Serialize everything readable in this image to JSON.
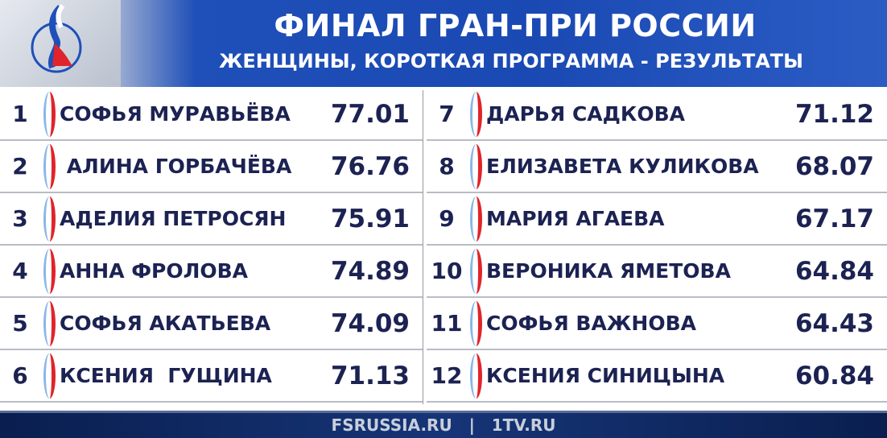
{
  "header": {
    "title": "ФИНАЛ ГРАН-ПРИ РОССИИ",
    "subtitle": "ЖЕНЩИНЫ, КОРОТКАЯ ПРОГРАММА - РЕЗУЛЬТАТЫ"
  },
  "results": [
    {
      "rank": "1",
      "name": "СОФЬЯ МУРАВЬЁВА",
      "score": "77.01"
    },
    {
      "rank": "2",
      "name": " АЛИНА ГОРБАЧЁВА",
      "score": "76.76"
    },
    {
      "rank": "3",
      "name": "АДЕЛИЯ ПЕТРОСЯН",
      "score": "75.91"
    },
    {
      "rank": "4",
      "name": "АННА ФРОЛОВА",
      "score": "74.89"
    },
    {
      "rank": "5",
      "name": "СОФЬЯ АКАТЬЕВА",
      "score": "74.09"
    },
    {
      "rank": "6",
      "name": "КСЕНИЯ  ГУЩИНА",
      "score": "71.13"
    },
    {
      "rank": "7",
      "name": "ДАРЬЯ САДКОВА",
      "score": "71.12"
    },
    {
      "rank": "8",
      "name": "ЕЛИЗАВЕТА КУЛИКОВА",
      "score": "68.07"
    },
    {
      "rank": "9",
      "name": "МАРИЯ АГАЕВА",
      "score": "67.17"
    },
    {
      "rank": "10",
      "name": "ВЕРОНИКА ЯМЕТОВА",
      "score": "64.84"
    },
    {
      "rank": "11",
      "name": "СОФЬЯ ВАЖНОВА",
      "score": "64.43"
    },
    {
      "rank": "12",
      "name": "КСЕНИЯ СИНИЦЫНА",
      "score": "60.84"
    }
  ],
  "footer": {
    "text": "FSRUSSIA.RU   |   1TV.RU"
  },
  "colors": {
    "text": "#1c2252",
    "header": "#1a49b3",
    "accent_red": "#e0242b"
  }
}
